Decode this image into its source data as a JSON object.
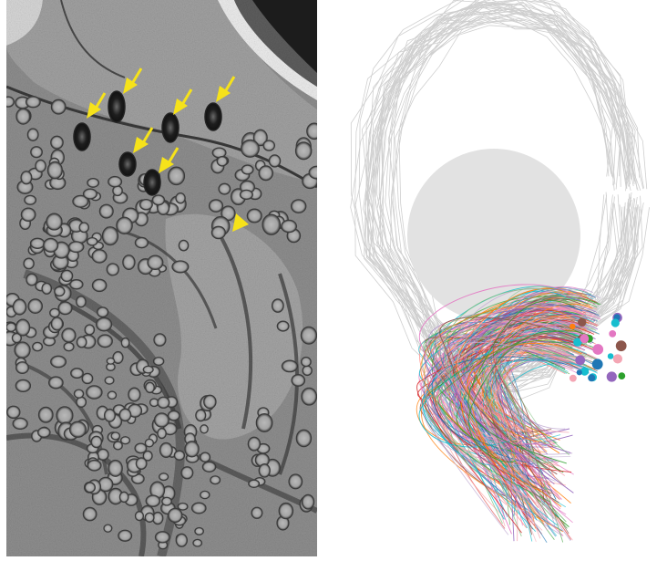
{
  "panels": [
    {
      "id": "em-micrograph",
      "description_kind": "electron-microscopy"
    },
    {
      "id": "neuron-reconstruction",
      "description_kind": "3d-tracing"
    }
  ],
  "arrows": {
    "count": 7,
    "color": "#f6e21a"
  },
  "arrowheads": {
    "count": 1,
    "color": "#f6e21a"
  },
  "colors": {
    "cell_outline": "#cfcfcf",
    "nucleus": "#e2e2e2",
    "membrane_dark": "#3a3a3a",
    "cytoplasm": "#9a9a9a",
    "traces": [
      "#d62728",
      "#1f77b4",
      "#2ca02c",
      "#ff7f0e",
      "#9467bd",
      "#e377c2",
      "#8c564b",
      "#17becf",
      "#f4a6b4",
      "#7fbf7f",
      "#c5b0d5",
      "#ff9896"
    ]
  }
}
